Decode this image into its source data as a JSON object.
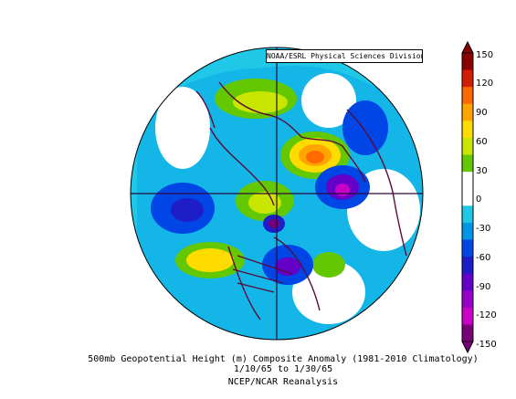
{
  "credit": "NOAA/ESRL Physical Sciences Division",
  "colorbar": {
    "labels": [
      "150",
      "120",
      "90",
      "60",
      "30",
      "0",
      "-30",
      "-60",
      "-90",
      "-120",
      "-150"
    ],
    "colors": [
      "#8a0000",
      "#d21e00",
      "#ff6a00",
      "#ffa500",
      "#ffdc00",
      "#c8e600",
      "#64c800",
      "#ffffff",
      "#ffffff",
      "#1ec8e6",
      "#0096e6",
      "#0046e6",
      "#1e1ec8",
      "#6400c8",
      "#9600c8",
      "#c800c8",
      "#780078"
    ]
  },
  "caption": {
    "line1": "500mb Geopotential Height (m) Composite Anomaly (1981-2010 Climatology)",
    "line2": "1/10/65  to 1/30/65",
    "line3": "NCEP/NCAR Reanalysis"
  },
  "map": {
    "projection": "north-polar-stereographic",
    "background": "#1ec8e6",
    "anomalies": [
      {
        "region": "north-atlantic-greenland",
        "value": 60
      },
      {
        "region": "central-europe-siberia",
        "value": 120
      },
      {
        "region": "east-asia",
        "value": -90
      },
      {
        "region": "north-pacific",
        "value": -60
      },
      {
        "region": "north-america-west",
        "value": 60
      },
      {
        "region": "eastern-north-america",
        "value": -90
      },
      {
        "region": "arctic-canada",
        "value": 60
      },
      {
        "region": "hudson-bay",
        "value": -120
      }
    ]
  }
}
